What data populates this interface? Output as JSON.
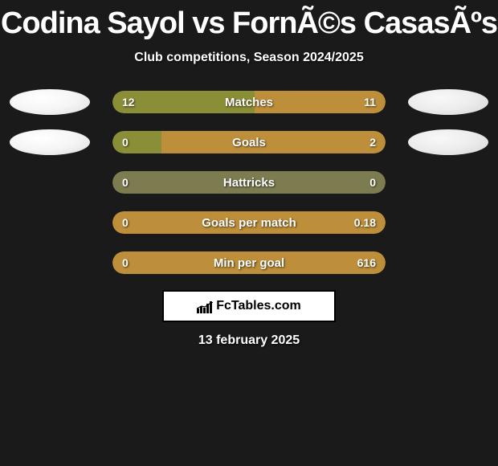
{
  "title": "Codina Sayol vs FornÃ©s CasasÃºs",
  "subtitle": "Club competitions, Season 2024/2025",
  "date": "13 february 2025",
  "logo_text": "FcTables.com",
  "colors": {
    "background": "#1a1a1a",
    "left_bar": "#8a8e36",
    "right_bar": "#be8f3a",
    "neutral_bar": "#7d7c51",
    "avatar_left": "#ffffff",
    "avatar_right": "#e8e8e8",
    "text": "#ffffff"
  },
  "stats": [
    {
      "label": "Matches",
      "left_value": "12",
      "right_value": "11",
      "left_pct": 52,
      "right_pct": 48,
      "left_color": "#8a8e36",
      "right_color": "#be8f3a",
      "show_avatars": true
    },
    {
      "label": "Goals",
      "left_value": "0",
      "right_value": "2",
      "left_pct": 18,
      "right_pct": 82,
      "left_color": "#8a8e36",
      "right_color": "#be8f3a",
      "show_avatars": true
    },
    {
      "label": "Hattricks",
      "left_value": "0",
      "right_value": "0",
      "left_pct": 100,
      "right_pct": 0,
      "left_color": "#7d7c51",
      "right_color": "#7d7c51",
      "show_avatars": false
    },
    {
      "label": "Goals per match",
      "left_value": "0",
      "right_value": "0.18",
      "left_pct": 0,
      "right_pct": 100,
      "left_color": "#8a8e36",
      "right_color": "#be8f3a",
      "show_avatars": false
    },
    {
      "label": "Min per goal",
      "left_value": "0",
      "right_value": "616",
      "left_pct": 0,
      "right_pct": 100,
      "left_color": "#8a8e36",
      "right_color": "#be8f3a",
      "show_avatars": false
    }
  ]
}
